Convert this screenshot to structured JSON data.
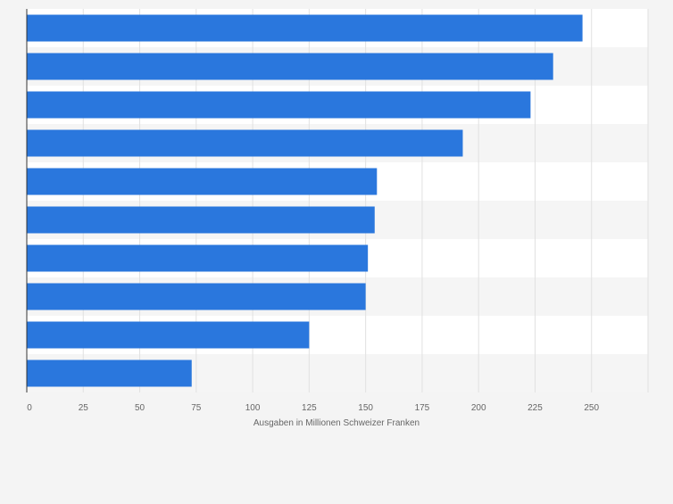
{
  "chart_data": {
    "type": "bar",
    "orientation": "horizontal",
    "title": "",
    "xlabel": "Ausgaben in Millionen Schweizer Franken",
    "ylabel": "",
    "categories": [
      "",
      "",
      "",
      "",
      "",
      "",
      "",
      "",
      "",
      ""
    ],
    "values": [
      246,
      233,
      223,
      193,
      155,
      154,
      151,
      150,
      125,
      73
    ],
    "xlim": [
      0,
      275
    ],
    "xticks": [
      0,
      25,
      50,
      75,
      100,
      125,
      150,
      175,
      200,
      225,
      250
    ],
    "xtick_labels": [
      "0",
      "25",
      "50",
      "75",
      "100",
      "125",
      "150",
      "175",
      "200",
      "225",
      "250"
    ],
    "grid": true,
    "legend": "none",
    "bar_color": "#2a77dd",
    "plot_background": "#ffffff",
    "band_color": "#f5f5f5",
    "grid_color": "#e1e1e1",
    "axis_color": "#333333",
    "text_color": "#666666"
  }
}
